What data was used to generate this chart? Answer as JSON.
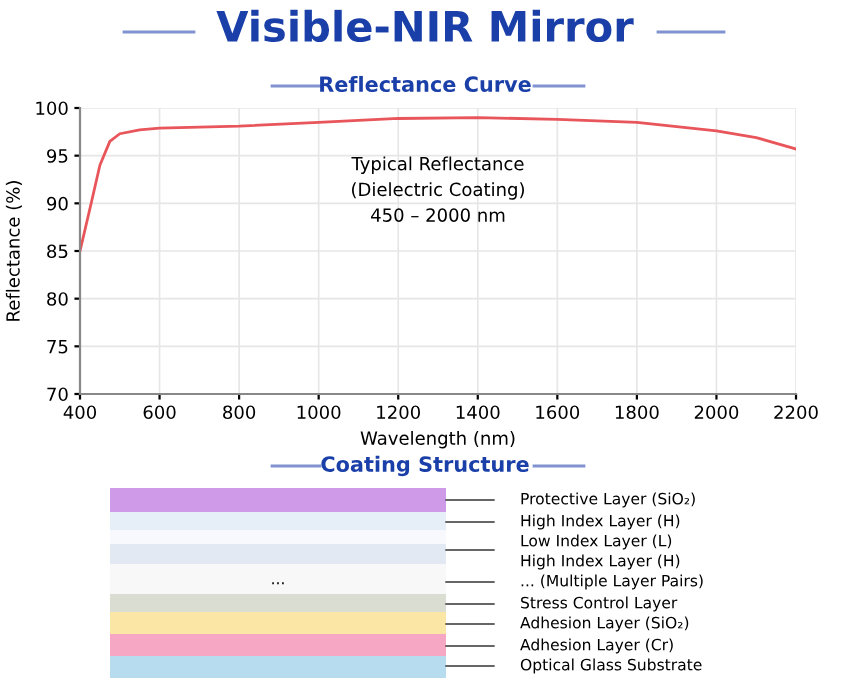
{
  "chart_data": [
    {
      "type": "line",
      "title": "Visible-NIR Mirror",
      "subtitle": "Reflectance Curve",
      "xlabel": "Wavelength (nm)",
      "ylabel": "Reflectance (%)",
      "x": [
        400,
        428,
        450,
        475,
        500,
        550,
        600,
        800,
        1000,
        1200,
        1400,
        1600,
        1800,
        2000,
        2100,
        2200
      ],
      "series": [
        {
          "color": "#e8555a",
          "values": [
            85,
            90,
            94,
            96.5,
            97.3,
            97.7,
            97.9,
            98.1,
            98.5,
            98.9,
            99.0,
            98.8,
            98.5,
            97.6,
            96.9,
            95.7
          ]
        }
      ],
      "xlim": [
        400,
        2200
      ],
      "xticks": [
        400,
        600,
        800,
        1000,
        1200,
        1400,
        1600,
        1800,
        2000,
        2200
      ],
      "ylim": [
        70,
        100
      ],
      "yticks": [
        70,
        75,
        80,
        85,
        90,
        95,
        100
      ],
      "grid": true,
      "marker": "none",
      "line_style": "solid",
      "annotations": [
        "Typical Reflectance\n(Dielectric Coating)\n450 – 2000 nm"
      ]
    },
    {
      "type": "other",
      "title": "Coating Structure",
      "annotations": [
        "Protective Layer (SiO₂)",
        "High Index Layer (H)",
        "Low Index Layer (L)",
        "High Index Layer (H)",
        "... (Multiple Layer Pairs)",
        "Stress Control Layer",
        "Adhesion Layer (SiO₂)",
        "Adhesion Layer (Cr)",
        "Optical Glass Substrate",
        "..."
      ]
    }
  ]
}
